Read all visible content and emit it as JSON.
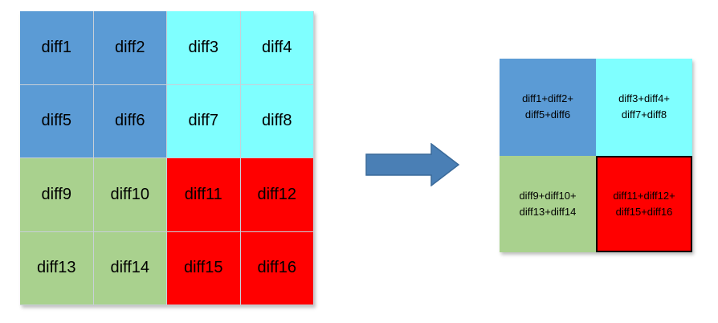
{
  "colors": {
    "blue": "#5b9bd5",
    "cyan": "#7fffff",
    "green": "#a9d18e",
    "red": "#ff0000",
    "arrow": "#4a7fb5"
  },
  "left_grid": {
    "cells": [
      {
        "label": "diff1",
        "color": "#5b9bd5"
      },
      {
        "label": "diff2",
        "color": "#5b9bd5"
      },
      {
        "label": "diff3",
        "color": "#7fffff"
      },
      {
        "label": "diff4",
        "color": "#7fffff"
      },
      {
        "label": "diff5",
        "color": "#5b9bd5"
      },
      {
        "label": "diff6",
        "color": "#5b9bd5"
      },
      {
        "label": "diff7",
        "color": "#7fffff"
      },
      {
        "label": "diff8",
        "color": "#7fffff"
      },
      {
        "label": "diff9",
        "color": "#a9d18e"
      },
      {
        "label": "diff10",
        "color": "#a9d18e"
      },
      {
        "label": "diff11",
        "color": "#ff0000"
      },
      {
        "label": "diff12",
        "color": "#ff0000"
      },
      {
        "label": "diff13",
        "color": "#a9d18e"
      },
      {
        "label": "diff14",
        "color": "#a9d18e"
      },
      {
        "label": "diff15",
        "color": "#ff0000"
      },
      {
        "label": "diff16",
        "color": "#ff0000"
      }
    ]
  },
  "arrow": {
    "icon": "right-arrow-icon"
  },
  "right_grid": {
    "cells": [
      {
        "label": "diff1+diff2+\ndiff5+diff6",
        "color": "#5b9bd5",
        "bordered": false
      },
      {
        "label": "diff3+diff4+\ndiff7+diff8",
        "color": "#7fffff",
        "bordered": false
      },
      {
        "label": "diff9+diff10+\ndiff13+diff14",
        "color": "#a9d18e",
        "bordered": false
      },
      {
        "label": "diff11+diff12+\ndiff15+diff16",
        "color": "#ff0000",
        "bordered": true
      }
    ]
  }
}
